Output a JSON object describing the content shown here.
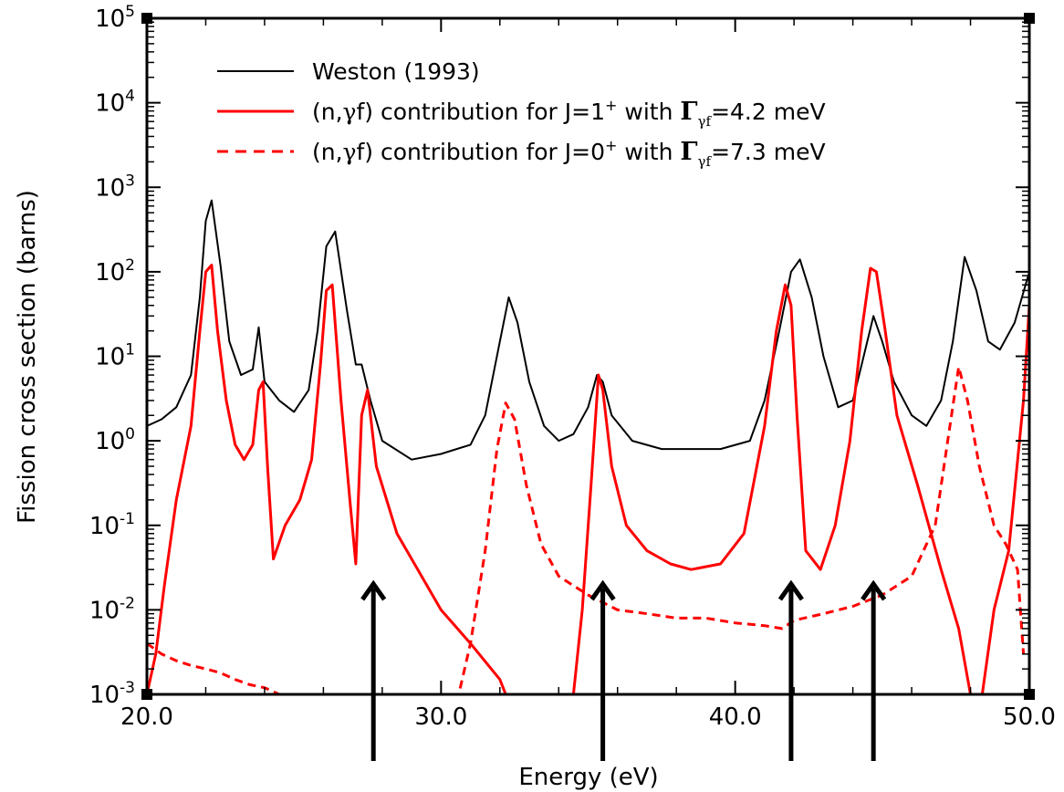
{
  "chart_data": {
    "type": "line",
    "title": "",
    "xlabel": "Energy (eV)",
    "ylabel": "Fission cross section (barns)",
    "xlim": [
      20.0,
      50.0
    ],
    "ylim": [
      0.001,
      100000
    ],
    "y_scale": "log",
    "grid": false,
    "legend_position": "top-right",
    "x_ticks": [
      "20.0",
      "30.0",
      "40.0",
      "50.0"
    ],
    "y_ticks": [
      {
        "base": "10",
        "exp": "-3",
        "value": 0.001
      },
      {
        "base": "10",
        "exp": "-2",
        "value": 0.01
      },
      {
        "base": "10",
        "exp": "-1",
        "value": 0.1
      },
      {
        "base": "10",
        "exp": "0",
        "value": 1
      },
      {
        "base": "10",
        "exp": "1",
        "value": 10
      },
      {
        "base": "10",
        "exp": "2",
        "value": 100
      },
      {
        "base": "10",
        "exp": "3",
        "value": 1000
      },
      {
        "base": "10",
        "exp": "4",
        "value": 10000
      },
      {
        "base": "10",
        "exp": "5",
        "value": 100000
      }
    ],
    "legend": [
      {
        "text_parts": [
          "Weston (1993)"
        ],
        "color": "#000000",
        "dash": false
      },
      {
        "text_parts": [
          "(n,",
          "γ",
          "f) contribution for J=1",
          "+",
          " with ",
          "Γ",
          "γf",
          "=4.2 meV"
        ],
        "color": "#ff0000",
        "dash": false
      },
      {
        "text_parts": [
          "(n,",
          "γ",
          "f) contribution for J=0",
          "+",
          " with ",
          "Γ",
          "γf",
          "=7.3 meV"
        ],
        "color": "#ff0000",
        "dash": true
      }
    ],
    "series": [
      {
        "name": "Weston (1993)",
        "color": "#000000",
        "style": "solid",
        "x": [
          20.0,
          20.5,
          21.0,
          21.5,
          21.8,
          22.0,
          22.2,
          22.5,
          22.8,
          23.2,
          23.6,
          23.8,
          24.0,
          24.5,
          25.0,
          25.5,
          25.8,
          26.1,
          26.4,
          26.8,
          27.1,
          27.3,
          27.6,
          28.0,
          29.0,
          30.0,
          31.0,
          31.5,
          32.0,
          32.3,
          32.6,
          33.0,
          33.5,
          34.0,
          34.5,
          35.0,
          35.3,
          35.5,
          35.8,
          36.5,
          37.5,
          38.5,
          39.5,
          40.5,
          41.0,
          41.5,
          41.9,
          42.2,
          42.6,
          43.0,
          43.5,
          44.0,
          44.3,
          44.7,
          45.0,
          45.4,
          46.0,
          46.5,
          47.0,
          47.4,
          47.8,
          48.2,
          48.6,
          49.0,
          49.5,
          50.0
        ],
        "y": [
          1.5,
          1.8,
          2.5,
          6.0,
          50,
          400,
          700,
          120,
          15,
          6,
          7,
          22,
          5,
          3,
          2.2,
          4,
          20,
          200,
          300,
          35,
          8,
          8,
          3,
          1.0,
          0.6,
          0.7,
          0.9,
          2,
          15,
          50,
          25,
          5,
          1.5,
          1.0,
          1.2,
          2.5,
          6,
          5,
          2,
          1.0,
          0.8,
          0.8,
          0.8,
          1.0,
          3,
          20,
          100,
          140,
          50,
          10,
          2.5,
          3,
          8,
          30,
          15,
          5,
          2,
          1.5,
          3,
          15,
          150,
          60,
          15,
          12,
          25,
          100
        ]
      },
      {
        "name": "(n,γf) contribution for J=1+ with Γγf=4.2 meV",
        "color": "#ff0000",
        "style": "solid",
        "x": [
          20.0,
          20.3,
          20.6,
          21.0,
          21.5,
          21.8,
          22.0,
          22.2,
          22.4,
          22.7,
          23.0,
          23.3,
          23.6,
          23.8,
          23.95,
          24.1,
          24.3,
          24.7,
          25.2,
          25.6,
          25.9,
          26.1,
          26.3,
          26.6,
          26.9,
          27.1,
          27.3,
          27.5,
          27.8,
          28.5,
          30.0,
          31.0,
          32.0,
          32.2,
          34.5,
          34.8,
          35.1,
          35.35,
          35.5,
          35.8,
          36.3,
          37.0,
          37.8,
          38.5,
          39.5,
          40.3,
          41.0,
          41.4,
          41.7,
          41.9,
          42.1,
          42.4,
          42.9,
          43.4,
          43.9,
          44.3,
          44.6,
          44.8,
          45.1,
          45.5,
          46.2,
          47.0,
          47.6,
          48.0,
          48.4,
          48.8,
          49.3,
          49.8,
          50.0
        ],
        "y": [
          0.001,
          0.003,
          0.02,
          0.2,
          1.5,
          20,
          100,
          120,
          20,
          3,
          0.9,
          0.6,
          0.9,
          4,
          5,
          0.5,
          0.04,
          0.1,
          0.2,
          0.6,
          8,
          60,
          70,
          3,
          0.2,
          0.035,
          2,
          4,
          0.5,
          0.08,
          0.01,
          0.004,
          0.0015,
          0.001,
          0.001,
          0.01,
          0.3,
          6,
          4,
          0.5,
          0.1,
          0.05,
          0.035,
          0.03,
          0.035,
          0.08,
          1.5,
          20,
          70,
          40,
          2,
          0.05,
          0.03,
          0.1,
          1,
          20,
          110,
          100,
          20,
          2,
          0.3,
          0.03,
          0.006,
          0.001,
          0.001,
          0.01,
          0.05,
          3,
          40
        ]
      },
      {
        "name": "(n,γf) contribution for J=0+ with Γγf=7.3 meV",
        "color": "#ff0000",
        "style": "dashed",
        "x": [
          20.0,
          20.5,
          21.0,
          21.5,
          22.0,
          22.5,
          23.0,
          23.5,
          24.0,
          24.5,
          30.6,
          31.0,
          31.5,
          31.9,
          32.2,
          32.5,
          32.9,
          33.4,
          34.0,
          35.0,
          36.0,
          37.0,
          38.0,
          39.0,
          40.0,
          41.0,
          41.6,
          42.0,
          43.0,
          44.0,
          45.0,
          46.0,
          46.8,
          47.3,
          47.6,
          47.9,
          48.3,
          48.8,
          49.2,
          49.6,
          49.8
        ],
        "y": [
          0.004,
          0.003,
          0.0025,
          0.0022,
          0.002,
          0.0018,
          0.0015,
          0.0013,
          0.0012,
          0.001,
          0.001,
          0.004,
          0.05,
          0.8,
          2.8,
          1.8,
          0.3,
          0.06,
          0.025,
          0.015,
          0.01,
          0.009,
          0.008,
          0.008,
          0.007,
          0.0065,
          0.006,
          0.0075,
          0.009,
          0.011,
          0.015,
          0.025,
          0.1,
          1.5,
          7.5,
          3,
          0.5,
          0.1,
          0.06,
          0.03,
          0.003
        ]
      }
    ],
    "arrows_at_energy": [
      27.7,
      35.5,
      41.9,
      44.7
    ]
  }
}
